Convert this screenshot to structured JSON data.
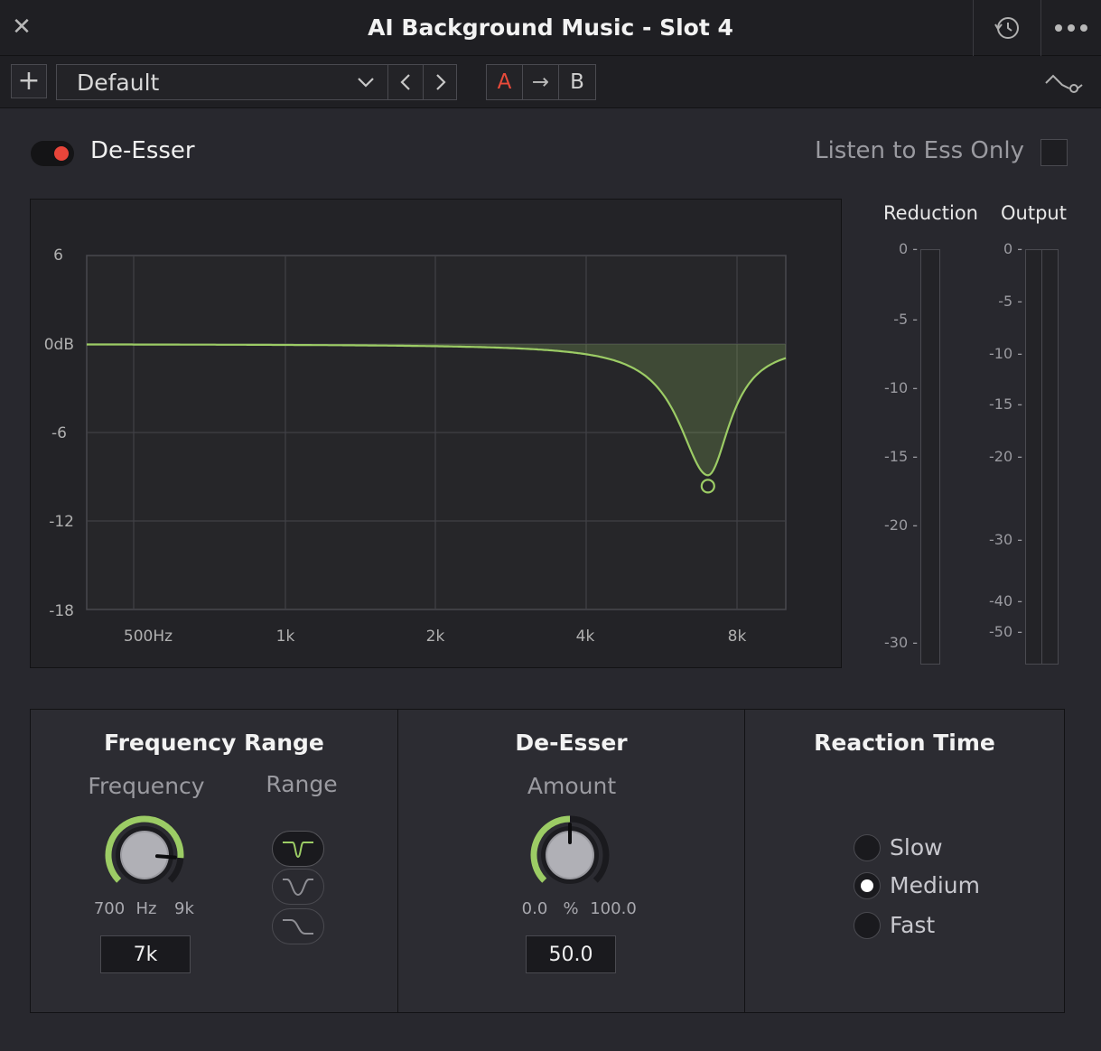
{
  "window": {
    "title": "AI Background Music - Slot 4"
  },
  "preset": {
    "name": "Default",
    "ab_a": "A",
    "ab_arrow": "→",
    "ab_b": "B"
  },
  "effect": {
    "name": "De-Esser",
    "enabled": true,
    "listen_label": "Listen to Ess Only",
    "listen_checked": false
  },
  "graph": {
    "y_ticks": [
      "6",
      "0dB",
      "-6",
      "-12",
      "-18"
    ],
    "x_ticks": [
      "500Hz",
      "1k",
      "2k",
      "4k",
      "8k"
    ],
    "curve_color": "#9ccc65",
    "notch_frequency_hz": 7000,
    "notch_depth_db": -8.9
  },
  "meters": {
    "reduction_label": "Reduction",
    "output_label": "Output",
    "reduction_ticks": [
      "0",
      "-5",
      "-10",
      "-15",
      "-20",
      "-30"
    ],
    "output_ticks": [
      "0",
      "-5",
      "-10",
      "-15",
      "-20",
      "-30",
      "-40",
      "-50"
    ]
  },
  "frequency_range": {
    "title": "Frequency Range",
    "frequency_label": "Frequency",
    "range_label": "Range",
    "min_label": "700",
    "unit_label": "Hz",
    "max_label": "9k",
    "value": "7k",
    "knob_level": 0.85,
    "range_options": [
      "notch-narrow",
      "notch-wide",
      "high-shelf"
    ],
    "range_selected": 0
  },
  "de_esser": {
    "title": "De-Esser",
    "amount_label": "Amount",
    "min_label": "0.0",
    "unit_label": "%",
    "max_label": "100.0",
    "value": "50.0",
    "knob_level": 0.5
  },
  "reaction_time": {
    "title": "Reaction Time",
    "options": [
      "Slow",
      "Medium",
      "Fast"
    ],
    "selected": "Medium"
  },
  "colors": {
    "accent_green": "#9ccc65",
    "toggle_red": "#e8453a",
    "ab_red": "#e84a3a"
  }
}
